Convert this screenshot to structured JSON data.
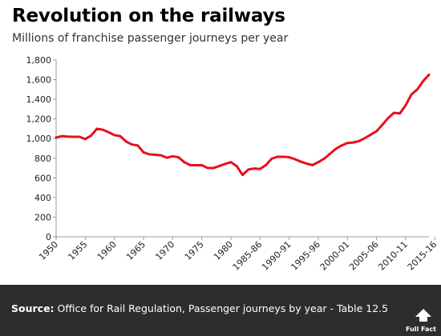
{
  "title": "Revolution on the railways",
  "subtitle": "Millions of franchise passenger journeys per year",
  "footer": {
    "source_label": "Source:",
    "source_text": "Office for Rail Regulation, Passenger journeys by year - Table 12.5",
    "logo_text": "Full Fact"
  },
  "colors": {
    "line": "#e8101c",
    "footer_bg": "#2d2d2d",
    "axis": "#999999"
  },
  "chart_data": {
    "type": "line",
    "title": "Revolution on the railways",
    "subtitle": "Millions of franchise passenger journeys per year",
    "xlabel": "",
    "ylabel": "",
    "ylim": [
      0,
      1800
    ],
    "yticks": [
      0,
      200,
      400,
      600,
      800,
      1000,
      1200,
      1400,
      1600,
      1800
    ],
    "ytick_labels": [
      "0",
      "200",
      "400",
      "600",
      "800",
      "1,000",
      "1,200",
      "1,400",
      "1,600",
      "1,800"
    ],
    "xtick_labels": [
      "1950",
      "1955",
      "1960",
      "1965",
      "1970",
      "1975",
      "1980",
      "1985-86",
      "1990-91",
      "1995-96",
      "2000-01",
      "2005-06",
      "2010-11",
      "2015-16"
    ],
    "grid": false,
    "series": [
      {
        "name": "",
        "x": [
          "1950",
          "1951",
          "1952",
          "1953",
          "1954",
          "1955",
          "1956",
          "1957",
          "1958",
          "1959",
          "1960",
          "1961",
          "1962",
          "1963",
          "1964",
          "1965",
          "1966",
          "1967",
          "1968",
          "1969",
          "1970",
          "1971",
          "1972",
          "1973",
          "1974",
          "1975",
          "1976",
          "1977",
          "1978",
          "1979",
          "1980",
          "1981",
          "1982",
          "1983",
          "1984",
          "1985-86",
          "1986-87",
          "1987-88",
          "1988-89",
          "1989-90",
          "1990-91",
          "1991-92",
          "1992-93",
          "1993-94",
          "1994-95",
          "1995-96",
          "1996-97",
          "1997-98",
          "1998-99",
          "1999-00",
          "2000-01",
          "2001-02",
          "2002-03",
          "2003-04",
          "2004-05",
          "2005-06",
          "2006-07",
          "2007-08",
          "2008-09",
          "2009-10",
          "2010-11",
          "2011-12",
          "2012-13",
          "2013-14",
          "2014-15"
        ],
        "values": [
          1010,
          1025,
          1020,
          1018,
          1018,
          995,
          1030,
          1100,
          1090,
          1065,
          1035,
          1025,
          970,
          940,
          930,
          860,
          840,
          835,
          830,
          805,
          820,
          810,
          760,
          730,
          728,
          730,
          700,
          700,
          720,
          742,
          760,
          720,
          630,
          685,
          695,
          690,
          730,
          795,
          815,
          815,
          810,
          790,
          765,
          745,
          730,
          760,
          795,
          845,
          895,
          930,
          955,
          960,
          975,
          1005,
          1040,
          1075,
          1140,
          1210,
          1262,
          1255,
          1340,
          1450,
          1500,
          1585,
          1650
        ]
      }
    ]
  }
}
